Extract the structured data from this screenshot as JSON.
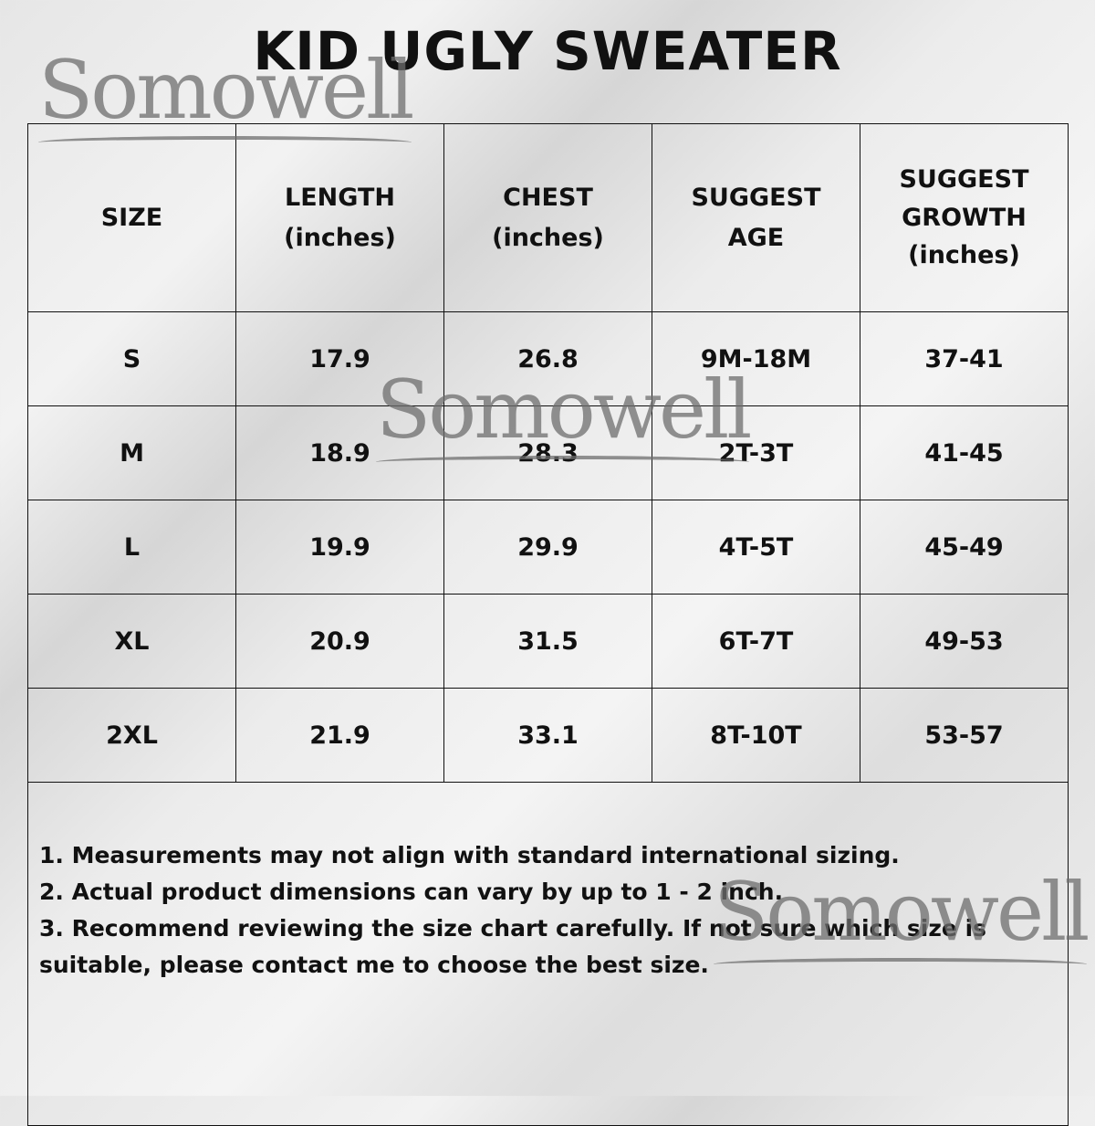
{
  "title": "KID UGLY SWEATER",
  "watermark": "Somowell",
  "table": {
    "headers": [
      [
        "SIZE"
      ],
      [
        "LENGTH",
        "(inches)"
      ],
      [
        "CHEST",
        "(inches)"
      ],
      [
        "SUGGEST",
        "AGE"
      ],
      [
        "SUGGEST",
        "GROWTH",
        "(inches)"
      ]
    ],
    "rows": [
      [
        "S",
        "17.9",
        "26.8",
        "9M-18M",
        "37-41"
      ],
      [
        "M",
        "18.9",
        "28.3",
        "2T-3T",
        "41-45"
      ],
      [
        "L",
        "19.9",
        "29.9",
        "4T-5T",
        "45-49"
      ],
      [
        "XL",
        "20.9",
        "31.5",
        "6T-7T",
        "49-53"
      ],
      [
        "2XL",
        "21.9",
        "33.1",
        "8T-10T",
        "53-57"
      ]
    ]
  },
  "notes": [
    "1. Measurements may not align with standard international sizing.",
    "2. Actual product dimensions can vary by up to 1 - 2 inch.",
    "3. Recommend reviewing the size chart carefully. If not sure which size is suitable, please contact me to choose the best size."
  ]
}
